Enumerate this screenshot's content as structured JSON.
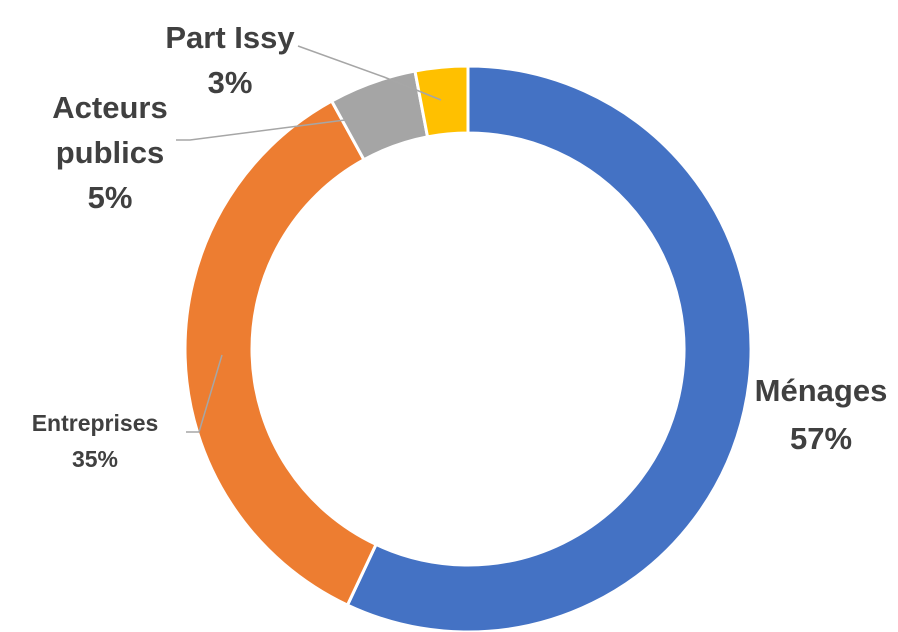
{
  "chart_data": {
    "type": "pie",
    "variant": "donut",
    "title": "",
    "legend": "none",
    "start_angle_degrees": 0,
    "direction": "clockwise",
    "series": [
      {
        "values": [
          57,
          35,
          5,
          3
        ],
        "categories": [
          "Ménages",
          "Entreprises",
          "Acteurs publics",
          "Part Issy"
        ]
      }
    ],
    "slices": [
      {
        "label": "Ménages",
        "value": 57,
        "display": "57%",
        "color": "#4472C4",
        "label_lines": [
          "Ménages"
        ],
        "label_size": "large"
      },
      {
        "label": "Entreprises",
        "value": 35,
        "display": "35%",
        "color": "#ED7D31",
        "label_lines": [
          "Entreprises"
        ],
        "label_size": "small"
      },
      {
        "label": "Acteurs publics",
        "value": 5,
        "display": "5%",
        "color": "#A5A5A5",
        "label_lines": [
          "Acteurs",
          "publics"
        ],
        "label_size": "large"
      },
      {
        "label": "Part Issy",
        "value": 3,
        "display": "3%",
        "color": "#FFC000",
        "label_lines": [
          "Part Issy"
        ],
        "label_size": "large"
      }
    ]
  }
}
